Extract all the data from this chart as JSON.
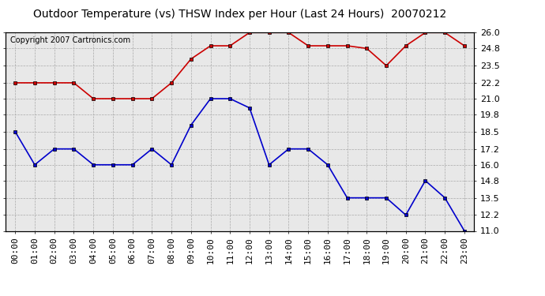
{
  "title": "Outdoor Temperature (vs) THSW Index per Hour (Last 24 Hours)  20070212",
  "copyright_text": "Copyright 2007 Cartronics.com",
  "hours": [
    0,
    1,
    2,
    3,
    4,
    5,
    6,
    7,
    8,
    9,
    10,
    11,
    12,
    13,
    14,
    15,
    16,
    17,
    18,
    19,
    20,
    21,
    22,
    23
  ],
  "thsw_red": [
    22.2,
    22.2,
    22.2,
    22.2,
    21.0,
    21.0,
    21.0,
    21.0,
    22.2,
    24.0,
    25.0,
    25.0,
    26.0,
    26.0,
    26.0,
    25.0,
    25.0,
    25.0,
    24.8,
    23.5,
    25.0,
    26.0,
    26.0,
    25.0
  ],
  "temp_blue": [
    18.5,
    16.0,
    17.2,
    17.2,
    16.0,
    16.0,
    16.0,
    17.2,
    16.0,
    19.0,
    21.0,
    21.0,
    20.3,
    16.0,
    17.2,
    17.2,
    16.0,
    13.5,
    13.5,
    13.5,
    12.2,
    14.8,
    13.5,
    11.0
  ],
  "red_color": "#cc0000",
  "blue_color": "#0000cc",
  "bg_color": "#ffffff",
  "plot_bg_color": "#e8e8e8",
  "grid_color": "#aaaaaa",
  "title_fontsize": 10,
  "copyright_fontsize": 7,
  "tick_fontsize": 8,
  "ylim": [
    11.0,
    26.0
  ],
  "yticks": [
    11.0,
    12.2,
    13.5,
    14.8,
    16.0,
    17.2,
    18.5,
    19.8,
    21.0,
    22.2,
    23.5,
    24.8,
    26.0
  ],
  "hour_labels": [
    "00:00",
    "01:00",
    "02:00",
    "03:00",
    "04:00",
    "05:00",
    "06:00",
    "07:00",
    "08:00",
    "09:00",
    "10:00",
    "11:00",
    "12:00",
    "13:00",
    "14:00",
    "15:00",
    "16:00",
    "17:00",
    "18:00",
    "19:00",
    "20:00",
    "21:00",
    "22:00",
    "23:00"
  ]
}
